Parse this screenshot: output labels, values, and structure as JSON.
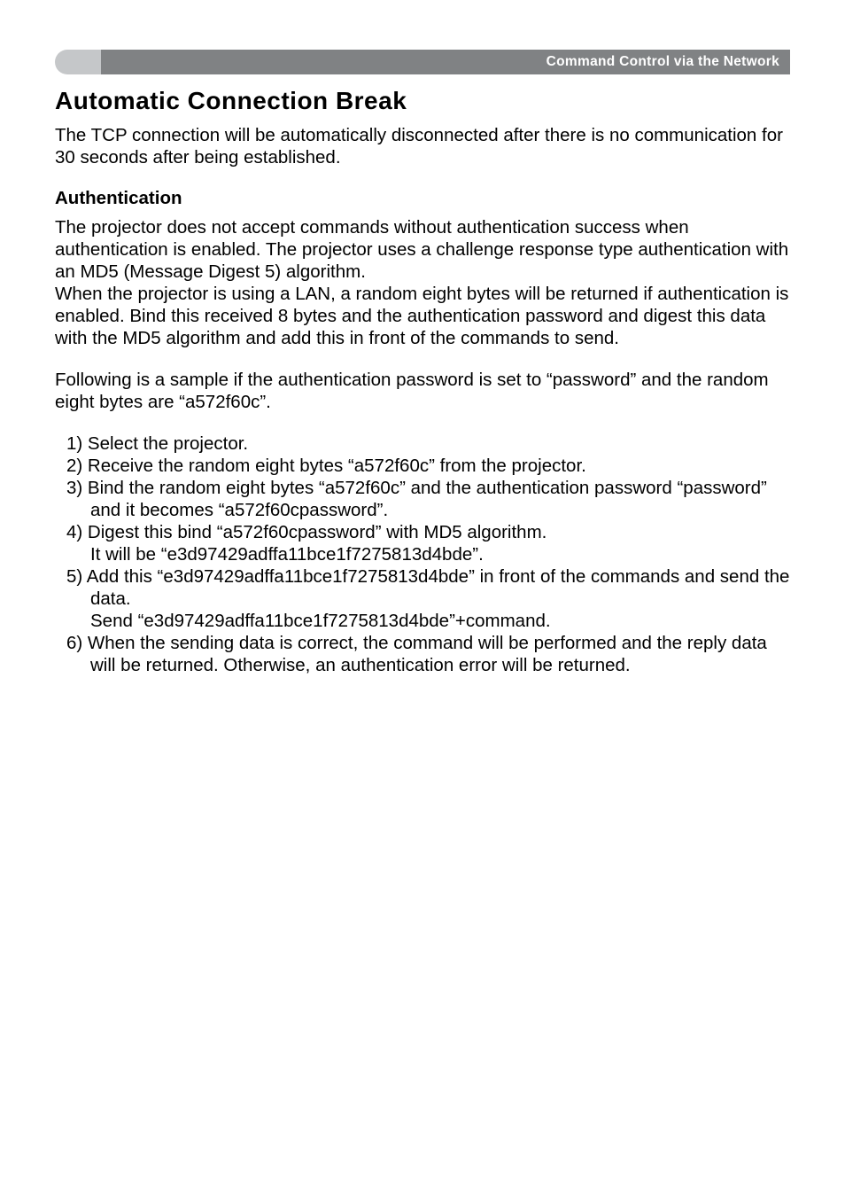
{
  "header": {
    "breadcrumb": "Command Control via the Network"
  },
  "section": {
    "title": "Automatic Connection Break",
    "intro": "The TCP connection will be automatically disconnected after there is no communication for 30 seconds after being established."
  },
  "auth": {
    "title": "Authentication",
    "p1": "The projector does not accept commands without authentication success when authentication is enabled. The projector uses a challenge response type authentication with an MD5 (Message Digest 5) algorithm.",
    "p2": "When the projector is using a LAN, a random eight bytes will be returned if authentication is enabled. Bind this received 8 bytes and the authentication password and digest this data with the MD5 algorithm and add this in front of the commands to send.",
    "p3": "Following is a sample if the authentication password is set to “password” and the random eight bytes are “a572f60c”."
  },
  "steps": {
    "s1": "1) Select the projector.",
    "s2": "2) Receive the random eight bytes “a572f60c” from the projector.",
    "s3": "3) Bind the random eight bytes “a572f60c” and the authentication password “password” and it becomes “a572f60cpassword”.",
    "s4a": "4) Digest this bind “a572f60cpassword” with MD5 algorithm.",
    "s4b": "It will be “e3d97429adffa11bce1f7275813d4bde”.",
    "s5a": "5) Add this “e3d97429adffa11bce1f7275813d4bde” in front of the commands and send the data.",
    "s5b": "Send “e3d97429adffa11bce1f7275813d4bde”+command.",
    "s6": "6) When the sending data is correct, the command will be performed and the reply data will be returned. Otherwise, an authentication error will be returned."
  },
  "colors": {
    "header_left_bg": "#c5c7c9",
    "header_right_bg": "#808284",
    "header_text": "#ffffff",
    "body_text": "#000000",
    "page_bg": "#ffffff"
  },
  "typography": {
    "title_fontsize": 28,
    "body_fontsize": 20.5,
    "header_fontsize": 15.5,
    "font_family": "Arial"
  }
}
